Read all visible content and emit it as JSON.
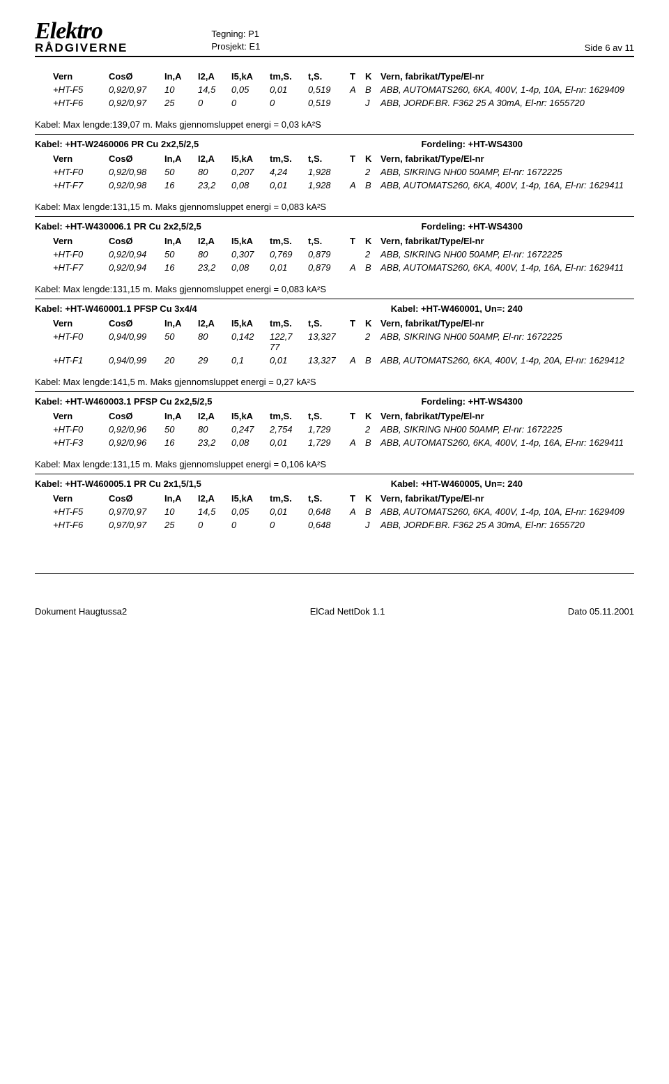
{
  "header": {
    "logo_top": "Elektro",
    "logo_bottom": "RÅDGIVERNE",
    "tegning_label": "Tegning: P1",
    "prosjekt_label": "Prosjekt: E1",
    "side": "Side 6 av 11"
  },
  "col_headers": [
    "Vern",
    "CosØ",
    "In,A",
    "I2,A",
    "I5,kA",
    "tm,S.",
    "t,S.",
    "T",
    "K",
    "Vern, fabrikat/Type/El-nr"
  ],
  "block0": {
    "rows": [
      {
        "c": [
          "+HT-F5",
          "0,92/0,97",
          "10",
          "14,5",
          "0,05",
          "0,01",
          "0,519",
          "A",
          "B",
          "ABB, AUTOMATS260, 6KA, 400V, 1-4p, 10A, El-nr: 1629409"
        ],
        "italic": true
      },
      {
        "c": [
          "+HT-F6",
          "0,92/0,97",
          "25",
          "0",
          "0",
          "0",
          "0,519",
          "",
          "J",
          "ABB, JORDF.BR. F362 25 A 30mA, El-nr: 1655720"
        ],
        "italic": true
      }
    ],
    "note": "Kabel: Max lengde:139,07 m. Maks gjennomsluppet energi = 0,03 kA²S"
  },
  "block1": {
    "title_left": "Kabel:   +HT-W2460006 PR Cu 2x2,5/2,5",
    "title_right": "Fordeling: +HT-WS4300",
    "rows": [
      {
        "c": [
          "+HT-F0",
          "0,92/0,98",
          "50",
          "80",
          "0,207",
          "4,24",
          "1,928",
          "",
          "2",
          "ABB, SIKRING NH00 50AMP, El-nr: 1672225"
        ],
        "italic": true
      },
      {
        "c": [
          "+HT-F7",
          "0,92/0,98",
          "16",
          "23,2",
          "0,08",
          "0,01",
          "1,928",
          "A",
          "B",
          "ABB, AUTOMATS260, 6KA, 400V, 1-4p, 16A, El-nr: 1629411"
        ],
        "italic": true
      }
    ],
    "note": "Kabel: Max lengde:131,15 m. Maks gjennomsluppet energi = 0,083 kA²S"
  },
  "block2": {
    "title_left": "Kabel:   +HT-W430006.1 PR Cu 2x2,5/2,5",
    "title_right": "Fordeling: +HT-WS4300",
    "rows": [
      {
        "c": [
          "+HT-F0",
          "0,92/0,94",
          "50",
          "80",
          "0,307",
          "0,769",
          "0,879",
          "",
          "2",
          "ABB, SIKRING NH00 50AMP, El-nr: 1672225"
        ],
        "italic": true
      },
      {
        "c": [
          "+HT-F7",
          "0,92/0,94",
          "16",
          "23,2",
          "0,08",
          "0,01",
          "0,879",
          "A",
          "B",
          "ABB, AUTOMATS260, 6KA, 400V, 1-4p, 16A, El-nr: 1629411"
        ],
        "italic": true
      }
    ],
    "note": "Kabel: Max lengde:131,15 m. Maks gjennomsluppet energi = 0,083 kA²S"
  },
  "block3": {
    "title_left": "Kabel:   +HT-W460001.1 PFSP Cu 3x4/4",
    "title_right": "Kabel: +HT-W460001, Un=: 240",
    "rows": [
      {
        "c": [
          "+HT-F0",
          "0,94/0,99",
          "50",
          "80",
          "0,142",
          "122,7 77",
          "13,327",
          "",
          "2",
          "ABB, SIKRING NH00 50AMP, El-nr: 1672225"
        ],
        "italic": true
      },
      {
        "c": [
          "+HT-F1",
          "0,94/0,99",
          "20",
          "29",
          "0,1",
          "0,01",
          "13,327",
          "A",
          "B",
          "ABB, AUTOMATS260, 6KA, 400V, 1-4p, 20A, El-nr: 1629412"
        ],
        "italic": true
      }
    ],
    "note": "Kabel: Max lengde:141,5 m. Maks gjennomsluppet energi = 0,27 kA²S"
  },
  "block4": {
    "title_left": "Kabel:   +HT-W460003.1 PFSP Cu 2x2,5/2,5",
    "title_right": "Fordeling: +HT-WS4300",
    "rows": [
      {
        "c": [
          "+HT-F0",
          "0,92/0,96",
          "50",
          "80",
          "0,247",
          "2,754",
          "1,729",
          "",
          "2",
          "ABB, SIKRING NH00 50AMP, El-nr: 1672225"
        ],
        "italic": true
      },
      {
        "c": [
          "+HT-F3",
          "0,92/0,96",
          "16",
          "23,2",
          "0,08",
          "0,01",
          "1,729",
          "A",
          "B",
          "ABB, AUTOMATS260, 6KA, 400V, 1-4p, 16A, El-nr: 1629411"
        ],
        "italic": true
      }
    ],
    "note": "Kabel: Max lengde:131,15 m. Maks gjennomsluppet energi = 0,106 kA²S"
  },
  "block5": {
    "title_left": "Kabel:   +HT-W460005.1 PR Cu 2x1,5/1,5",
    "title_right": "Kabel: +HT-W460005, Un=: 240",
    "rows": [
      {
        "c": [
          "+HT-F5",
          "0,97/0,97",
          "10",
          "14,5",
          "0,05",
          "0,01",
          "0,648",
          "A",
          "B",
          "ABB, AUTOMATS260, 6KA, 400V, 1-4p, 10A, El-nr: 1629409"
        ],
        "italic": true
      },
      {
        "c": [
          "+HT-F6",
          "0,97/0,97",
          "25",
          "0",
          "0",
          "0",
          "0,648",
          "",
          "J",
          "ABB, JORDF.BR. F362 25 A 30mA, El-nr: 1655720"
        ],
        "italic": true
      }
    ]
  },
  "footer": {
    "left": "Dokument Haugtussa2",
    "center": "ElCad NettDok 1.1",
    "right": "Dato 05.11.2001"
  }
}
